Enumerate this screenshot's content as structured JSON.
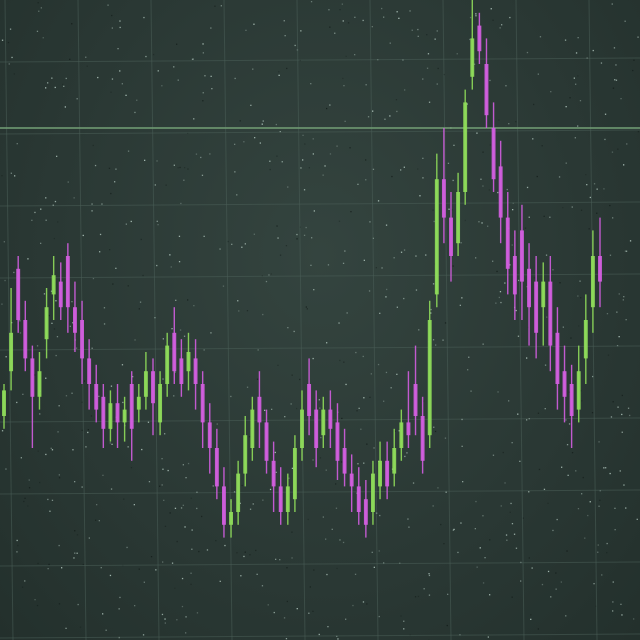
{
  "chart_data": {
    "type": "candlestick",
    "title": "",
    "xlabel": "",
    "ylabel": "",
    "grid": true,
    "ylim": [
      0,
      100
    ],
    "reference_line": 80,
    "colors": {
      "up": "#8fdc5a",
      "down": "#d25ee0",
      "grid": "#4a5e57",
      "reference": "#6f9a72",
      "background": "#2b3a36",
      "noise": "#cfe6dc"
    },
    "candles": [
      [
        35,
        39,
        40,
        33
      ],
      [
        42,
        48,
        55,
        39
      ],
      [
        58,
        50,
        60,
        48
      ],
      [
        50,
        44,
        53,
        42
      ],
      [
        44,
        38,
        46,
        30
      ],
      [
        38,
        42,
        45,
        36
      ],
      [
        47,
        52,
        55,
        44
      ],
      [
        54,
        57,
        60,
        50
      ],
      [
        56,
        52,
        59,
        50
      ],
      [
        60,
        52,
        62,
        48
      ],
      [
        52,
        48,
        56,
        45
      ],
      [
        50,
        44,
        53,
        40
      ],
      [
        44,
        40,
        47,
        36
      ],
      [
        40,
        36,
        43,
        34
      ],
      [
        38,
        33,
        40,
        30
      ],
      [
        33,
        37,
        39,
        31
      ],
      [
        37,
        34,
        40,
        30
      ],
      [
        34,
        36,
        38,
        31
      ],
      [
        40,
        33,
        42,
        28
      ],
      [
        36,
        38,
        40,
        34
      ],
      [
        38,
        42,
        45,
        36
      ],
      [
        42,
        37,
        44,
        32
      ],
      [
        34,
        40,
        42,
        32
      ],
      [
        40,
        46,
        48,
        38
      ],
      [
        48,
        42,
        52,
        40
      ],
      [
        44,
        40,
        47,
        38
      ],
      [
        42,
        45,
        48,
        39
      ],
      [
        44,
        40,
        47,
        36
      ],
      [
        40,
        34,
        42,
        30
      ],
      [
        34,
        30,
        37,
        26
      ],
      [
        30,
        24,
        33,
        22
      ],
      [
        24,
        18,
        27,
        16
      ],
      [
        18,
        20,
        22,
        16
      ],
      [
        20,
        26,
        28,
        18
      ],
      [
        26,
        32,
        35,
        24
      ],
      [
        30,
        36,
        38,
        28
      ],
      [
        38,
        34,
        42,
        30
      ],
      [
        34,
        28,
        36,
        26
      ],
      [
        28,
        24,
        31,
        20
      ],
      [
        24,
        20,
        27,
        18
      ],
      [
        20,
        24,
        26,
        18
      ],
      [
        22,
        30,
        32,
        20
      ],
      [
        30,
        36,
        39,
        28
      ],
      [
        40,
        35,
        44,
        32
      ],
      [
        36,
        30,
        39,
        27
      ],
      [
        32,
        36,
        38,
        30
      ],
      [
        36,
        33,
        39,
        30
      ],
      [
        34,
        28,
        37,
        25
      ],
      [
        30,
        26,
        33,
        24
      ],
      [
        26,
        24,
        29,
        20
      ],
      [
        24,
        20,
        27,
        18
      ],
      [
        22,
        18,
        25,
        16
      ],
      [
        20,
        26,
        28,
        18
      ],
      [
        24,
        28,
        31,
        22
      ],
      [
        28,
        24,
        31,
        22
      ],
      [
        26,
        30,
        33,
        24
      ],
      [
        30,
        34,
        36,
        28
      ],
      [
        34,
        32,
        42,
        30
      ],
      [
        40,
        35,
        46,
        32
      ],
      [
        35,
        28,
        38,
        26
      ],
      [
        32,
        50,
        53,
        30
      ],
      [
        54,
        72,
        76,
        52
      ],
      [
        72,
        66,
        80,
        62
      ],
      [
        66,
        60,
        70,
        56
      ],
      [
        62,
        70,
        73,
        60
      ],
      [
        70,
        84,
        86,
        68
      ],
      [
        88,
        94,
        100,
        86
      ],
      [
        96,
        92,
        98,
        90
      ],
      [
        90,
        82,
        94,
        80
      ],
      [
        80,
        72,
        84,
        70
      ],
      [
        74,
        66,
        78,
        62
      ],
      [
        66,
        58,
        70,
        54
      ],
      [
        60,
        54,
        64,
        50
      ],
      [
        64,
        56,
        68,
        50
      ],
      [
        58,
        52,
        62,
        46
      ],
      [
        56,
        48,
        60,
        44
      ],
      [
        52,
        56,
        59,
        46
      ],
      [
        56,
        46,
        60,
        42
      ],
      [
        48,
        40,
        52,
        36
      ],
      [
        42,
        38,
        46,
        34
      ],
      [
        40,
        35,
        43,
        30
      ],
      [
        36,
        42,
        46,
        34
      ],
      [
        44,
        50,
        54,
        40
      ],
      [
        52,
        60,
        64,
        48
      ],
      [
        60,
        56,
        66,
        52
      ]
    ]
  }
}
